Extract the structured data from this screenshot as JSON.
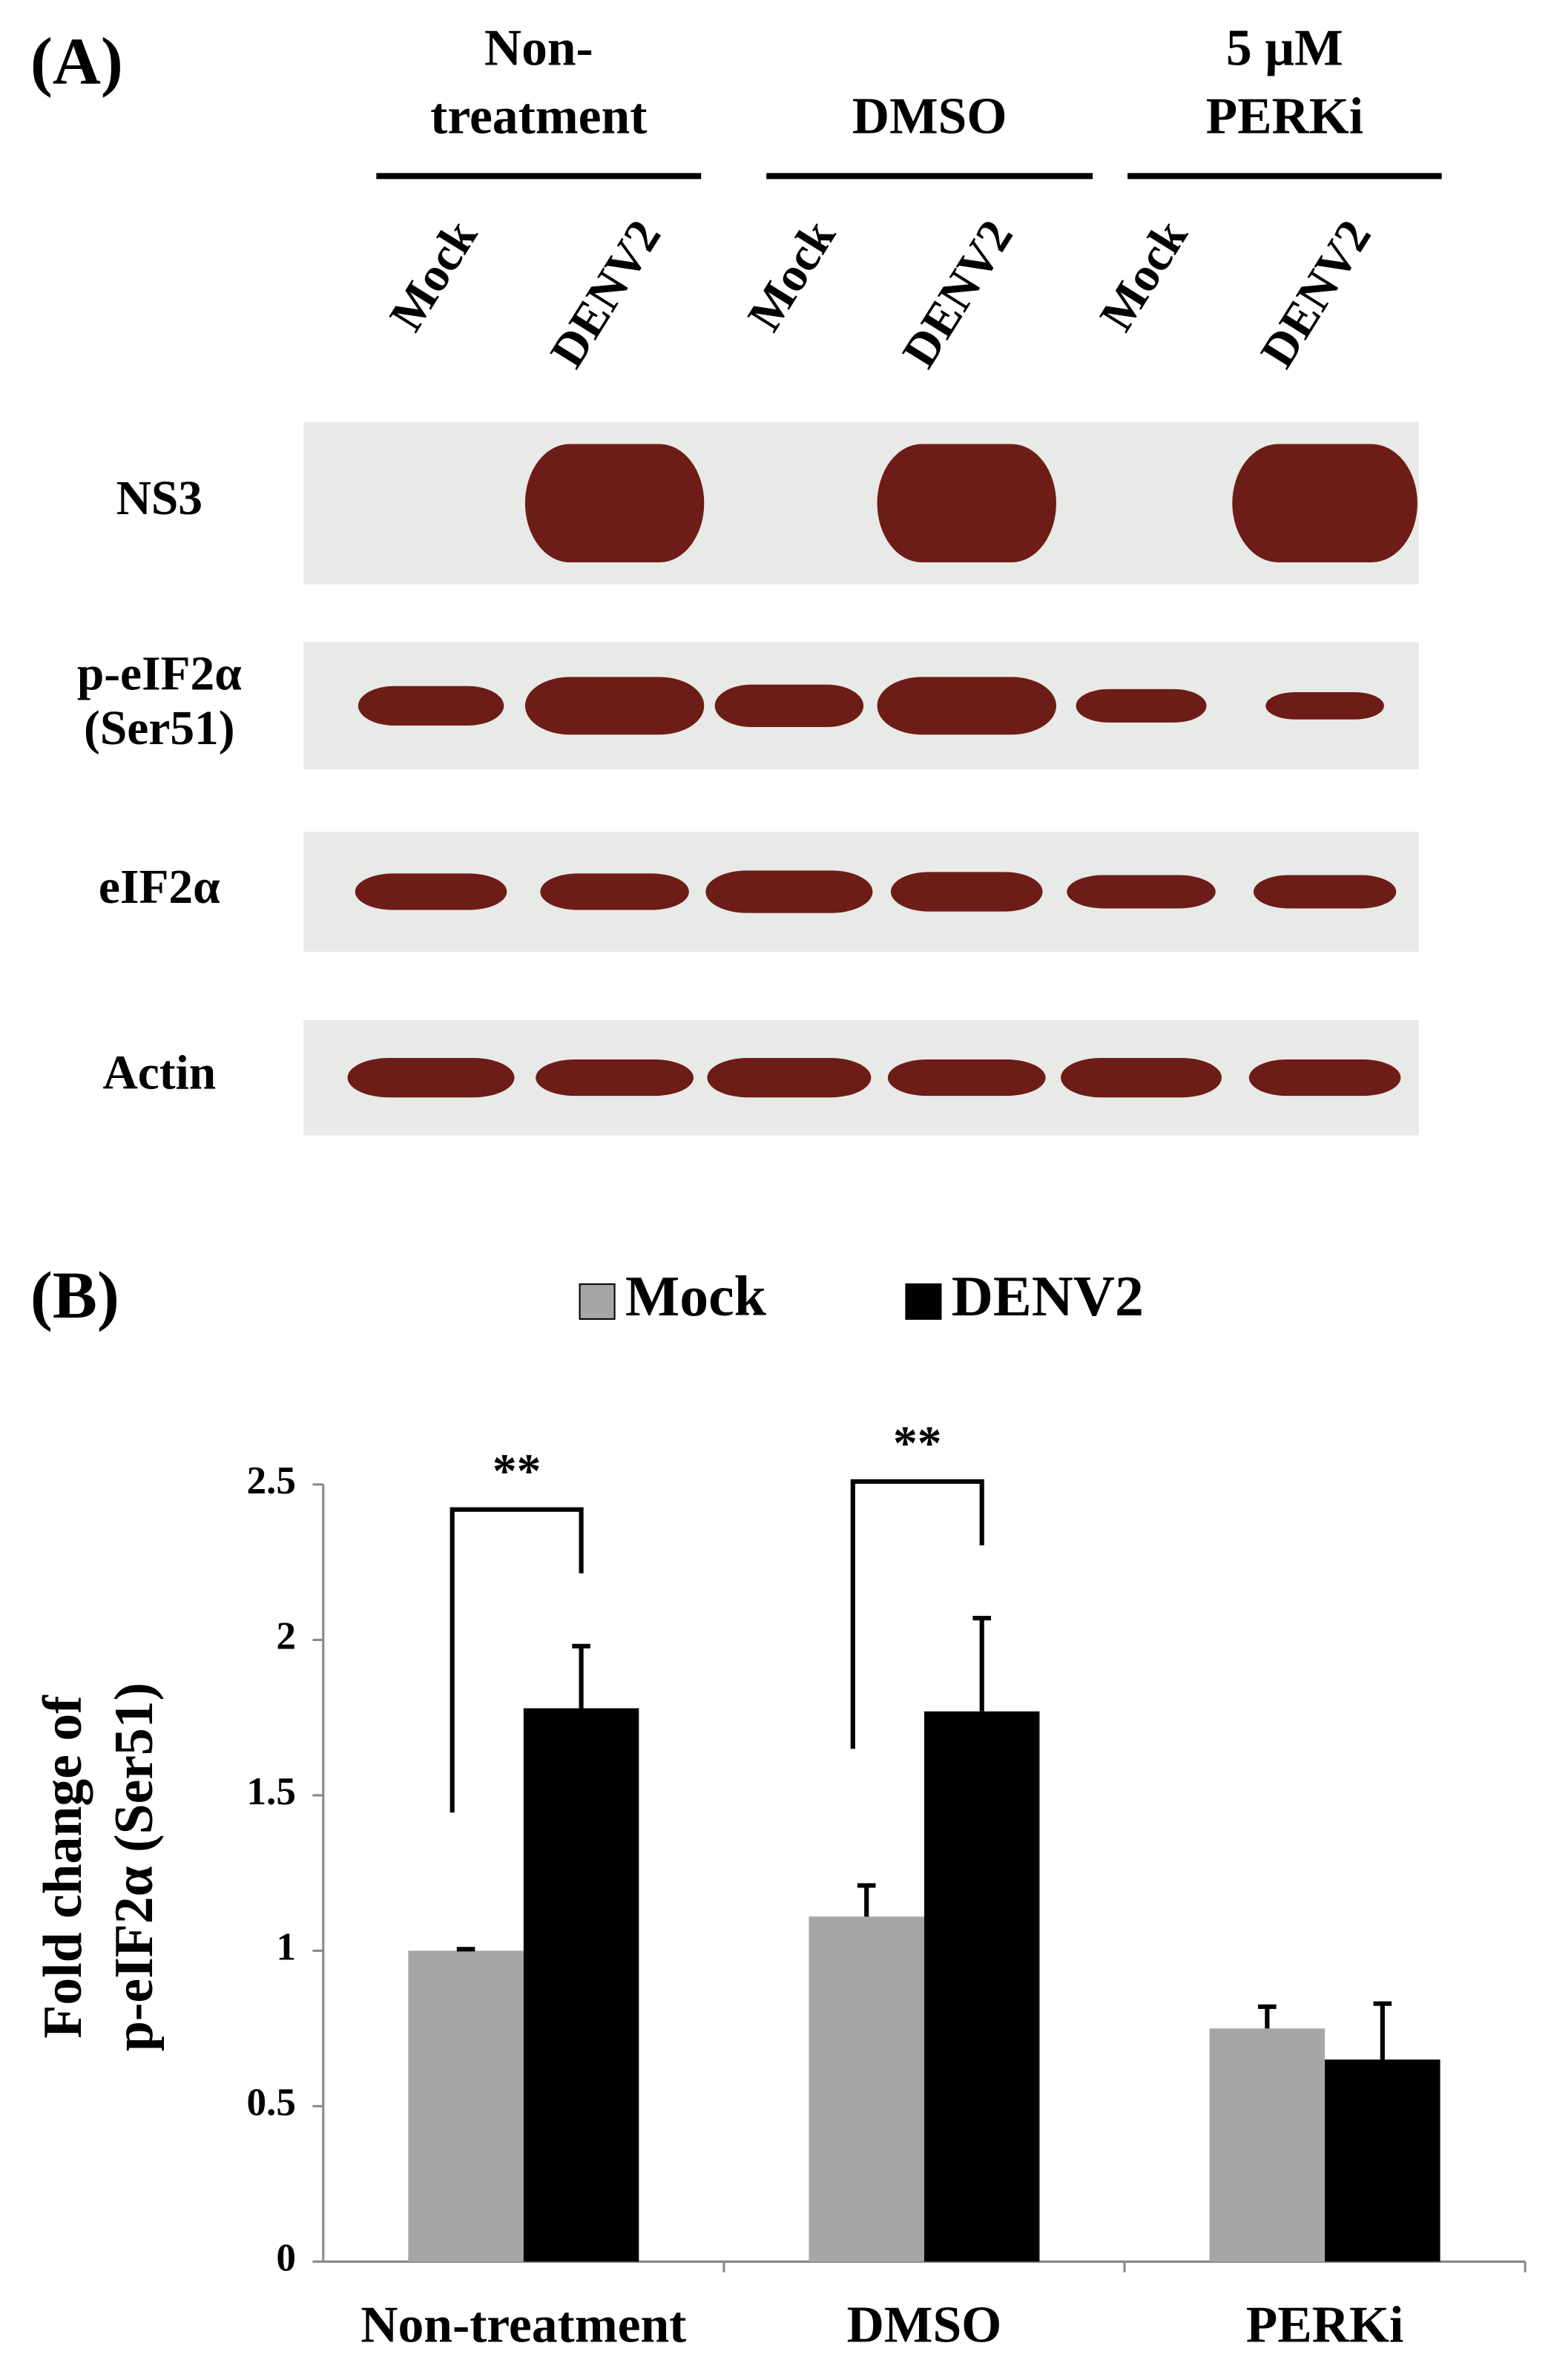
{
  "panel_labels": [
    "(A)",
    "(B)"
  ],
  "blot": {
    "groups": [
      {
        "lines": [
          "Non-",
          "treatment"
        ]
      },
      {
        "lines": [
          "DMSO"
        ]
      },
      {
        "lines": [
          "5 µM",
          "PERKi"
        ]
      }
    ],
    "lanes": [
      "Mock",
      "DENV2",
      "Mock",
      "DENV2",
      "Mock",
      "DENV2"
    ],
    "rows": [
      {
        "lines": [
          "NS3"
        ]
      },
      {
        "lines": [
          "p-eIF2α",
          "(Ser51)"
        ]
      },
      {
        "lines": [
          "eIF2α"
        ]
      },
      {
        "lines": [
          "Actin"
        ]
      }
    ]
  },
  "chart_data": {
    "type": "bar",
    "ylabel": [
      "Fold change of",
      "p-eIF2α (Ser51)"
    ],
    "categories": [
      "Non-treatment",
      "DMSO",
      "PERKi"
    ],
    "series": [
      {
        "name": "Mock",
        "color": "#a6a6a6",
        "values": [
          1.0,
          1.11,
          0.75
        ],
        "errors": [
          0.005,
          0.1,
          0.07
        ]
      },
      {
        "name": "DENV2",
        "color": "#000000",
        "values": [
          1.78,
          1.77,
          0.65
        ],
        "errors": [
          0.2,
          0.3,
          0.18
        ]
      }
    ],
    "annotations": [
      "**",
      "**"
    ],
    "ylim": [
      0,
      2.5
    ],
    "yticks": [
      0,
      0.5,
      1,
      1.5,
      2,
      2.5
    ],
    "grid": false
  }
}
